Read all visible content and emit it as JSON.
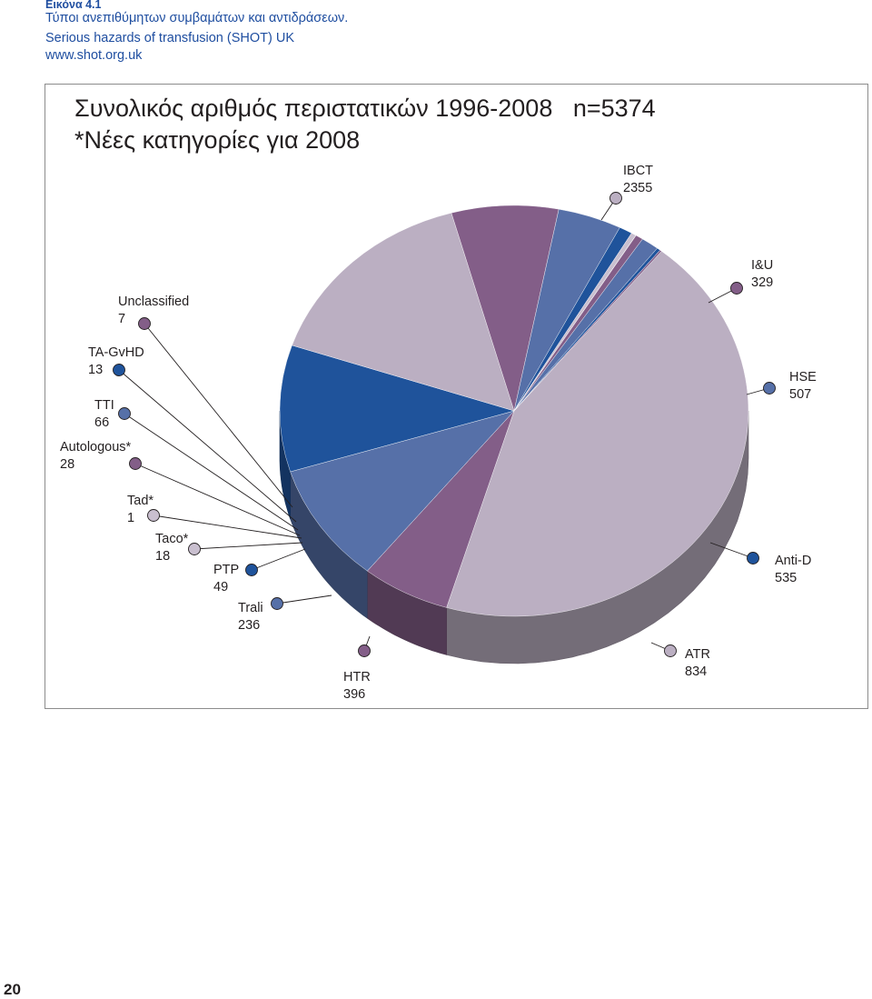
{
  "caption": {
    "tag": "Εικόνα 4.1",
    "line1": "Τύποι ανεπιθύμητων συμβαμάτων και αντιδράσεων.",
    "line2": "Serious hazards of transfusion (SHOT) UK",
    "line3": "www.shot.org.uk"
  },
  "page_number": "20",
  "chart_data": {
    "type": "pie",
    "title": "Συνολικός αριθμός περιστατικών 1996-2008   n=5374",
    "subtitle": "*Νέες κατηγορίες για 2008",
    "three_d": true,
    "legend": "callout labels around the pie",
    "slices": [
      {
        "label": "IBCT",
        "value": 2355,
        "color": "#bbafc2"
      },
      {
        "label": "I&U",
        "value": 329,
        "color": "#835e88"
      },
      {
        "label": "HSE",
        "value": 507,
        "color": "#5670a8"
      },
      {
        "label": "Anti-D",
        "value": 535,
        "color": "#1f539b"
      },
      {
        "label": "ATR",
        "value": 834,
        "color": "#bbafc2"
      },
      {
        "label": "HTR",
        "value": 396,
        "color": "#835e88"
      },
      {
        "label": "Trali",
        "value": 236,
        "color": "#5670a8"
      },
      {
        "label": "PTP",
        "value": 49,
        "color": "#1f539b"
      },
      {
        "label": "Taco*",
        "value": 18,
        "color": "#c9bfcf"
      },
      {
        "label": "Tad*",
        "value": 1,
        "color": "#c9bfcf"
      },
      {
        "label": "Autologous*",
        "value": 28,
        "color": "#835e88"
      },
      {
        "label": "TTI",
        "value": 66,
        "color": "#5670a8"
      },
      {
        "label": "TA-GvHD",
        "value": 13,
        "color": "#1f539b"
      },
      {
        "label": "Unclassified",
        "value": 7,
        "color": "#835e88"
      }
    ]
  }
}
